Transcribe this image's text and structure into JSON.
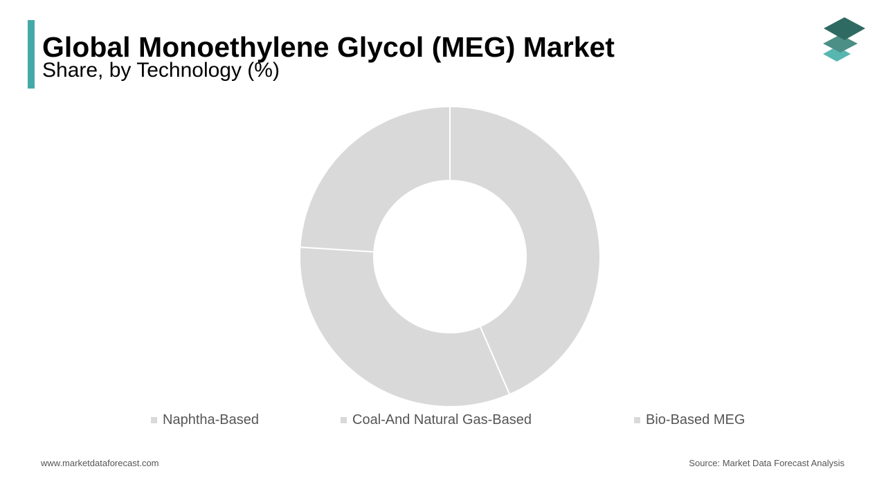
{
  "header": {
    "title": "Global Monoethylene Glycol (MEG) Market",
    "subtitle": "Share, by Technology (%)"
  },
  "colors": {
    "accent": "#44aaa8",
    "slice_fill": "#d9d9d9",
    "slice_border": "#ffffff",
    "legend_text": "#555555",
    "logo_top": "#2f6a62",
    "logo_mid": "#4c8f86",
    "logo_bottom": "#57b7b0"
  },
  "chart_data": {
    "type": "pie",
    "donut": true,
    "categories": [
      "Naphtha-Based",
      "Coal-And Natural Gas-Based",
      "Bio-Based MEG"
    ],
    "values": [
      43.5,
      32.5,
      24
    ],
    "legend_position": "bottom"
  },
  "footer": {
    "website": "www.marketdataforecast.com",
    "source": "Source: Market Data Forecast Analysis"
  }
}
